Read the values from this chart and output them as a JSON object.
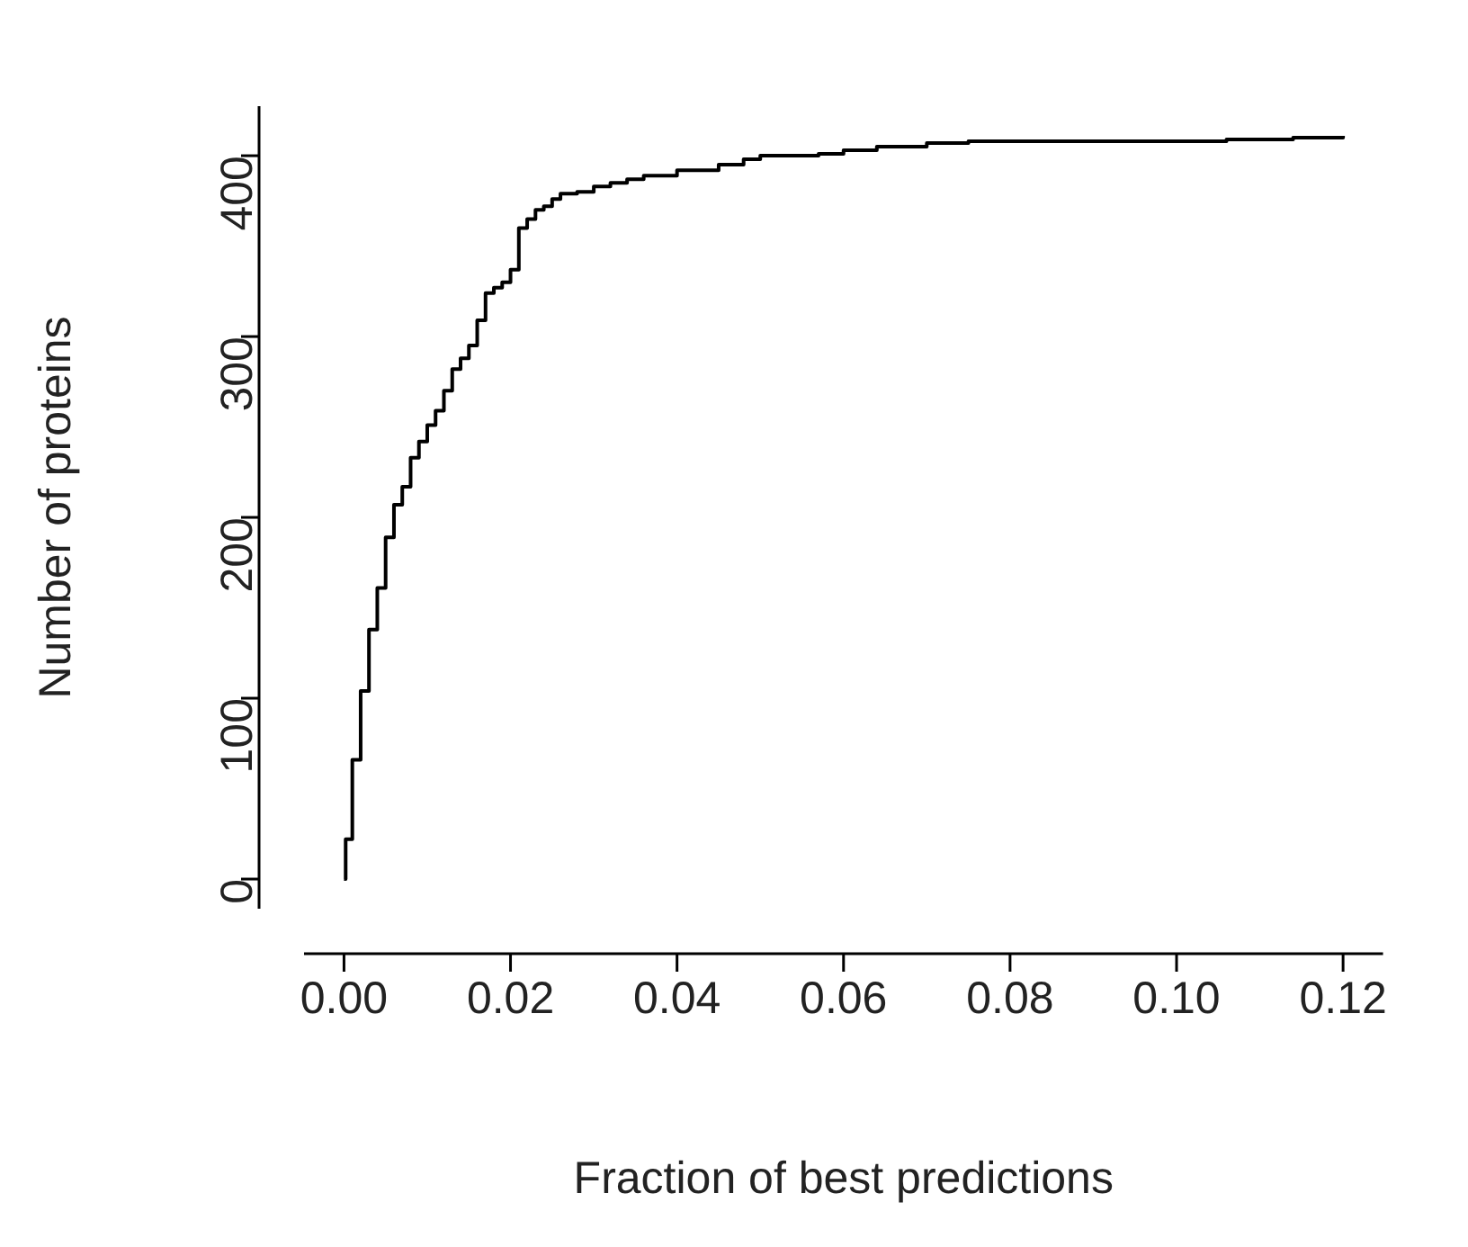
{
  "chart_data": {
    "type": "step",
    "xlabel": "Fraction of best predictions",
    "ylabel": "Number of proteins",
    "x": [
      0,
      0.0002,
      0.001,
      0.002,
      0.003,
      0.004,
      0.005,
      0.006,
      0.007,
      0.008,
      0.009,
      0.01,
      0.011,
      0.012,
      0.013,
      0.014,
      0.015,
      0.016,
      0.017,
      0.018,
      0.019,
      0.02,
      0.021,
      0.022,
      0.023,
      0.024,
      0.025,
      0.026,
      0.028,
      0.03,
      0.032,
      0.034,
      0.036,
      0.04,
      0.045,
      0.048,
      0.05,
      0.057,
      0.06,
      0.064,
      0.07,
      0.075,
      0.106,
      0.114,
      0.12
    ],
    "series": [
      {
        "color": "#000000",
        "values": [
          0,
          22,
          66,
          104,
          138,
          161,
          189,
          207,
          217,
          233,
          242,
          251,
          259,
          270,
          282,
          288,
          295,
          309,
          324,
          327,
          330,
          337,
          360,
          365,
          370,
          372,
          376,
          379,
          380,
          383,
          385,
          387,
          389,
          392,
          395,
          398,
          400,
          401,
          403,
          405,
          407,
          408,
          409,
          410,
          411
        ]
      }
    ],
    "xlim": [
      -0.0048,
      0.1248
    ],
    "xticks": [
      {
        "value": 0,
        "label": "0.00"
      },
      {
        "value": 0.02,
        "label": "0.02"
      },
      {
        "value": 0.04,
        "label": "0.04"
      },
      {
        "value": 0.06,
        "label": "0.06"
      },
      {
        "value": 0.08,
        "label": "0.08"
      },
      {
        "value": 0.1,
        "label": "0.10"
      },
      {
        "value": 0.12,
        "label": "0.12"
      }
    ],
    "ylim": [
      -16.4,
      427.4
    ],
    "yticks": [
      0,
      100,
      200,
      300,
      400
    ],
    "grid": false,
    "legend": false,
    "marker": "none",
    "line_style": "solid"
  }
}
